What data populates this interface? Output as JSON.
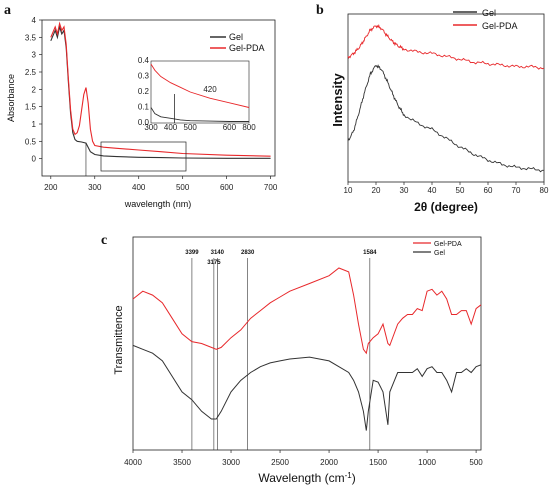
{
  "chart_data": [
    {
      "panel": "a",
      "type": "line",
      "xlabel": "wavelength (nm)",
      "ylabel": "Absorbance",
      "xlim": [
        180,
        710
      ],
      "ylim": [
        -0.5,
        4.0
      ],
      "x_ticks": [
        200,
        300,
        400,
        500,
        600,
        700
      ],
      "y_ticks": [
        0,
        0.5,
        1,
        1.5,
        2,
        2.5,
        3,
        3.5,
        4
      ],
      "x_tick_labels": [
        "200",
        "300",
        "400",
        "500",
        "600",
        "700"
      ],
      "y_tick_labels": [
        "0",
        "0.5",
        "1",
        "1.5",
        "2",
        "2.5",
        "3",
        "3.5",
        "4"
      ],
      "legend_placement": "top-right",
      "series": [
        {
          "name": "Gel",
          "color": "#333333",
          "x": [
            200,
            210,
            215,
            220,
            225,
            230,
            235,
            240,
            245,
            250,
            255,
            260,
            270,
            280,
            290,
            300,
            320,
            350,
            400,
            450,
            500,
            600,
            700
          ],
          "y": [
            3.4,
            3.7,
            3.5,
            3.8,
            3.6,
            3.7,
            3.2,
            2.2,
            1.3,
            0.75,
            0.55,
            0.5,
            0.48,
            0.45,
            0.2,
            0.12,
            0.08,
            0.06,
            0.04,
            0.03,
            0.02,
            0.01,
            0.01
          ]
        },
        {
          "name": "Gel-PDA",
          "color": "#e8282b",
          "x": [
            200,
            210,
            215,
            220,
            225,
            230,
            235,
            240,
            245,
            250,
            255,
            260,
            265,
            270,
            275,
            280,
            285,
            290,
            295,
            300,
            320,
            350,
            400,
            450,
            500,
            600,
            700
          ],
          "y": [
            3.5,
            3.8,
            3.6,
            3.9,
            3.7,
            3.8,
            3.3,
            2.3,
            1.4,
            0.85,
            0.7,
            0.75,
            0.95,
            1.4,
            1.85,
            2.05,
            1.6,
            0.85,
            0.5,
            0.38,
            0.33,
            0.3,
            0.25,
            0.2,
            0.15,
            0.1,
            0.07
          ]
        }
      ],
      "inset": {
        "xlim": [
          300,
          800
        ],
        "ylim": [
          0,
          0.4
        ],
        "x_tick_labels": [
          "300",
          "400",
          "500",
          "600",
          "800"
        ],
        "y_tick_labels": [
          "0.0",
          "0.1",
          "0.2",
          "0.3",
          "0.4"
        ],
        "annotation": "420",
        "series": [
          {
            "name": "Gel",
            "color": "#333333",
            "x": [
              300,
              320,
              350,
              400,
              450,
              500,
              600,
              700,
              800
            ],
            "y": [
              0.1,
              0.06,
              0.04,
              0.03,
              0.02,
              0.015,
              0.012,
              0.01,
              0.01
            ]
          },
          {
            "name": "Gel-PDA",
            "color": "#e8282b",
            "x": [
              300,
              320,
              350,
              400,
              450,
              500,
              600,
              700,
              800
            ],
            "y": [
              0.38,
              0.34,
              0.3,
              0.26,
              0.23,
              0.2,
              0.16,
              0.13,
              0.1
            ]
          }
        ]
      }
    },
    {
      "panel": "b",
      "type": "line",
      "xlabel": "2θ (degree)",
      "ylabel": "Intensity",
      "xlim": [
        10,
        80
      ],
      "x_ticks": [
        10,
        20,
        30,
        40,
        50,
        60,
        70,
        80
      ],
      "x_tick_labels": [
        "10",
        "20",
        "30",
        "40",
        "50",
        "60",
        "70",
        "80"
      ],
      "legend_placement": "top-right",
      "series": [
        {
          "name": "Gel",
          "color": "#333333",
          "x": [
            10,
            12,
            14,
            16,
            18,
            20,
            22,
            24,
            26,
            28,
            30,
            35,
            40,
            45,
            50,
            55,
            60,
            65,
            70,
            75,
            80
          ],
          "y": [
            0.28,
            0.35,
            0.48,
            0.62,
            0.74,
            0.8,
            0.77,
            0.69,
            0.6,
            0.52,
            0.46,
            0.4,
            0.36,
            0.3,
            0.24,
            0.19,
            0.15,
            0.12,
            0.1,
            0.09,
            0.08
          ]
        },
        {
          "name": "Gel-PDA",
          "color": "#e8282b",
          "x": [
            10,
            12,
            14,
            16,
            18,
            20,
            22,
            24,
            26,
            28,
            30,
            35,
            40,
            45,
            50,
            55,
            60,
            65,
            70,
            75,
            80
          ],
          "y": [
            0.85,
            0.88,
            0.92,
            0.98,
            1.04,
            1.07,
            1.05,
            1.0,
            0.96,
            0.93,
            0.91,
            0.89,
            0.88,
            0.86,
            0.84,
            0.82,
            0.81,
            0.8,
            0.79,
            0.79,
            0.78
          ]
        }
      ]
    },
    {
      "panel": "c",
      "type": "line",
      "xlabel": "Wavelength (cm",
      "xlabel_sup": "-1",
      "xlabel_end": ")",
      "ylabel": "Transmittence",
      "xlim": [
        4000,
        450
      ],
      "x_ticks": [
        4000,
        3500,
        3000,
        2500,
        2000,
        1500,
        1000,
        500
      ],
      "x_tick_labels": [
        "4000",
        "3500",
        "3000",
        "2500",
        "2000",
        "1500",
        "1000",
        "500"
      ],
      "legend_placement": "top-right",
      "reference_lines": [
        {
          "x": 3399,
          "label": "3399"
        },
        {
          "x": 3175,
          "label": "3175"
        },
        {
          "x": 3140,
          "label": "3140"
        },
        {
          "x": 2830,
          "label": "2830"
        },
        {
          "x": 1584,
          "label": "1584"
        }
      ],
      "series": [
        {
          "name": "Gel-PDA",
          "color": "#e8282b",
          "x": [
            4000,
            3900,
            3800,
            3700,
            3600,
            3500,
            3400,
            3300,
            3200,
            3150,
            3100,
            3000,
            2900,
            2800,
            2700,
            2600,
            2500,
            2400,
            2200,
            2000,
            1900,
            1800,
            1750,
            1700,
            1650,
            1620,
            1600,
            1550,
            1500,
            1450,
            1400,
            1380,
            1300,
            1250,
            1200,
            1150,
            1100,
            1050,
            1000,
            950,
            900,
            850,
            800,
            750,
            700,
            650,
            600,
            550,
            500,
            450
          ],
          "y": [
            0.68,
            0.72,
            0.7,
            0.66,
            0.58,
            0.5,
            0.46,
            0.45,
            0.43,
            0.42,
            0.43,
            0.48,
            0.52,
            0.58,
            0.62,
            0.66,
            0.69,
            0.72,
            0.76,
            0.8,
            0.84,
            0.82,
            0.7,
            0.55,
            0.42,
            0.4,
            0.45,
            0.48,
            0.5,
            0.55,
            0.45,
            0.44,
            0.55,
            0.58,
            0.6,
            0.6,
            0.63,
            0.62,
            0.72,
            0.73,
            0.7,
            0.72,
            0.68,
            0.6,
            0.6,
            0.62,
            0.62,
            0.55,
            0.63,
            0.65
          ]
        },
        {
          "name": "Gel",
          "color": "#333333",
          "x": [
            4000,
            3900,
            3800,
            3700,
            3600,
            3500,
            3400,
            3300,
            3200,
            3150,
            3100,
            3000,
            2900,
            2800,
            2700,
            2600,
            2500,
            2400,
            2200,
            2000,
            1900,
            1800,
            1750,
            1700,
            1650,
            1620,
            1600,
            1550,
            1500,
            1450,
            1400,
            1380,
            1300,
            1250,
            1200,
            1150,
            1100,
            1050,
            1000,
            950,
            900,
            850,
            800,
            750,
            700,
            650,
            600,
            550,
            500,
            450
          ],
          "y": [
            0.44,
            0.42,
            0.4,
            0.36,
            0.28,
            0.2,
            0.16,
            0.1,
            0.06,
            0.06,
            0.1,
            0.2,
            0.26,
            0.3,
            0.33,
            0.35,
            0.36,
            0.37,
            0.38,
            0.36,
            0.33,
            0.3,
            0.26,
            0.2,
            0.1,
            0.0,
            0.1,
            0.26,
            0.25,
            0.2,
            0.03,
            0.2,
            0.3,
            0.3,
            0.3,
            0.3,
            0.32,
            0.28,
            0.32,
            0.33,
            0.3,
            0.3,
            0.26,
            0.2,
            0.3,
            0.3,
            0.32,
            0.3,
            0.33,
            0.34
          ]
        }
      ]
    }
  ]
}
